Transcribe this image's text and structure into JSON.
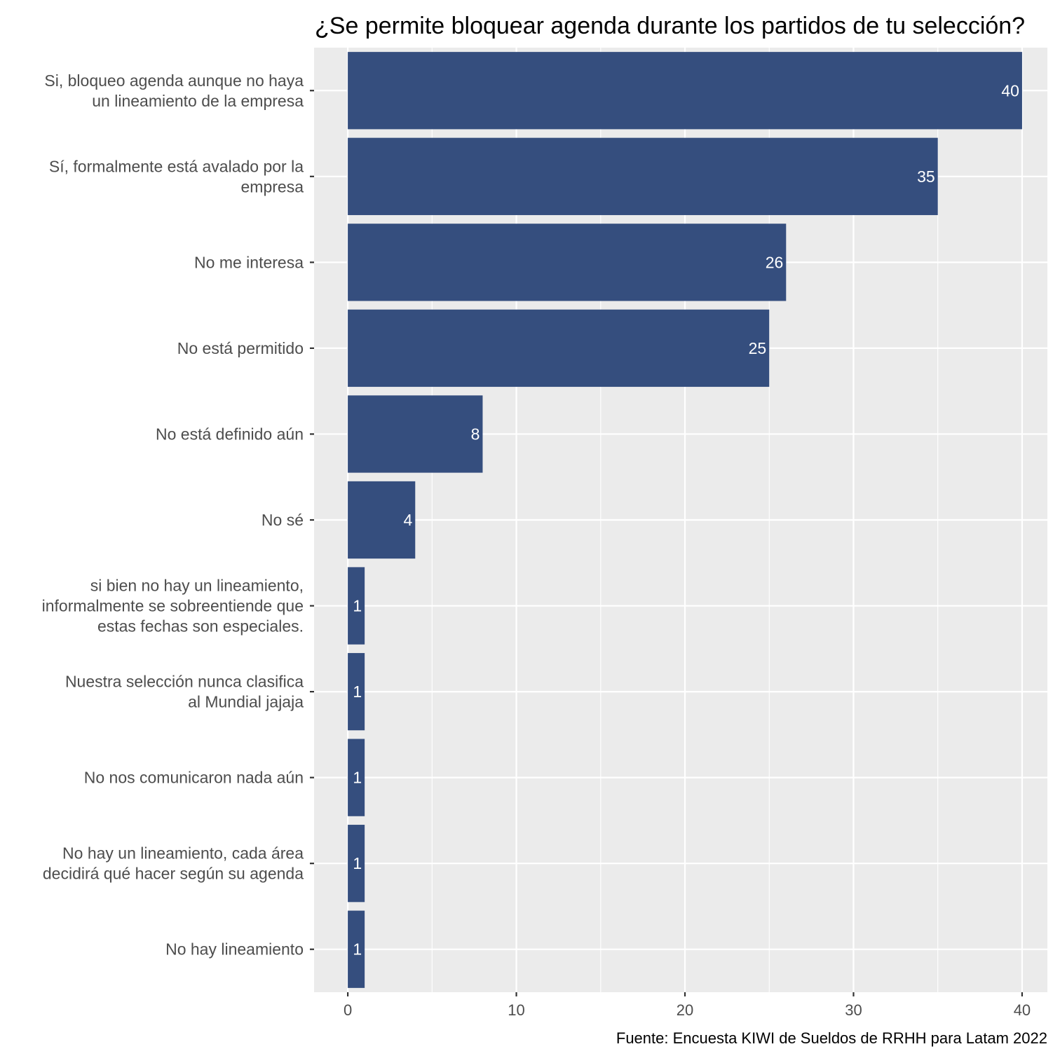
{
  "chart_data": {
    "type": "bar",
    "orientation": "horizontal",
    "title": "¿Se permite bloquear agenda durante los partidos de tu selección?",
    "caption": "Fuente: Encuesta KIWI de Sueldos de RRHH para Latam 2022",
    "xlabel": "",
    "ylabel": "",
    "xlim": [
      -2,
      41.5
    ],
    "x_ticks": [
      0,
      10,
      20,
      30,
      40
    ],
    "grid": true,
    "bar_color": "#354e7e",
    "panel_color": "#ebebeb",
    "categories": [
      [
        "Si, bloqueo agenda aunque no haya",
        "un lineamiento de la empresa"
      ],
      [
        "Sí, formalmente está avalado por la",
        "empresa"
      ],
      [
        "No me interesa"
      ],
      [
        "No está permitido"
      ],
      [
        "No está definido aún"
      ],
      [
        "No sé"
      ],
      [
        "si bien no hay un lineamiento,",
        "informalmente se sobreentiende que",
        "estas fechas son especiales."
      ],
      [
        "Nuestra selección nunca clasifica",
        "al Mundial jajaja"
      ],
      [
        "No nos comunicaron nada aún"
      ],
      [
        "No hay un lineamiento, cada área",
        "decidirá qué hacer según su agenda"
      ],
      [
        "No hay lineamiento"
      ]
    ],
    "values": [
      40,
      35,
      26,
      25,
      8,
      4,
      1,
      1,
      1,
      1,
      1
    ]
  }
}
